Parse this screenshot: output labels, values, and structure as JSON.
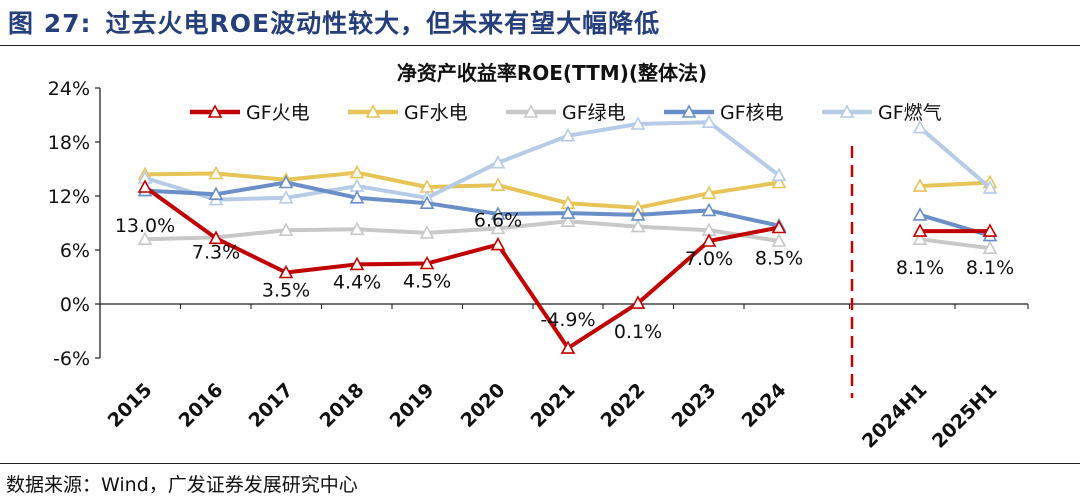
{
  "figure": {
    "label": "图 27:",
    "title": "过去火电ROE波动性较大，但未来有望大幅降低"
  },
  "source": {
    "label": "数据来源：",
    "text": "Wind，广发证券发展研究中心"
  },
  "colors": {
    "title": "#243f7a",
    "huo": "#c00000",
    "shui": "#e6c458",
    "lv": "#c8c8c8",
    "he": "#6a8fc8",
    "ran": "#b6cbe6",
    "divider": "#c00000"
  },
  "chart_data": {
    "type": "line",
    "title": "净资产收益率ROE(TTM)(整体法)",
    "xlabel": "",
    "ylabel": "",
    "ylim": [
      -6,
      24
    ],
    "yticks": [
      -6,
      0,
      6,
      12,
      18,
      24
    ],
    "ytick_labels": [
      "-6%",
      "0%",
      "6%",
      "12%",
      "18%",
      "24%"
    ],
    "categories": [
      "2015",
      "2016",
      "2017",
      "2018",
      "2019",
      "2020",
      "2021",
      "2022",
      "2023",
      "2024",
      "2024H1",
      "2025H1"
    ],
    "divider_after": "2024",
    "legend_position": "top",
    "series": [
      {
        "name": "GF火电",
        "color": "#c00000",
        "values": [
          13.0,
          7.3,
          3.5,
          4.4,
          4.5,
          6.6,
          -4.9,
          0.1,
          7.0,
          8.5,
          8.1,
          8.1
        ],
        "labels": [
          "13.0%",
          "7.3%",
          "3.5%",
          "4.4%",
          "4.5%",
          "6.6%",
          "-4.9%",
          "0.1%",
          "7.0%",
          "8.5%",
          "8.1%",
          "8.1%"
        ]
      },
      {
        "name": "GF水电",
        "color": "#e6c458",
        "values": [
          14.4,
          14.5,
          13.8,
          14.6,
          13.0,
          13.2,
          11.2,
          10.7,
          12.3,
          13.5,
          13.1,
          13.5
        ]
      },
      {
        "name": "GF绿电",
        "color": "#c8c8c8",
        "values": [
          7.2,
          7.4,
          8.2,
          8.3,
          7.9,
          8.4,
          9.2,
          8.6,
          8.2,
          7.0,
          7.2,
          6.2
        ]
      },
      {
        "name": "GF核电",
        "color": "#6a8fc8",
        "values": [
          12.6,
          12.2,
          13.5,
          11.8,
          11.2,
          10.0,
          10.1,
          9.9,
          10.4,
          8.7,
          9.9,
          7.6
        ]
      },
      {
        "name": "GF燃气",
        "color": "#b6cbe6",
        "values": [
          14.0,
          11.6,
          11.8,
          13.1,
          11.8,
          15.7,
          18.7,
          20.0,
          20.2,
          14.3,
          19.6,
          12.9
        ]
      }
    ]
  }
}
